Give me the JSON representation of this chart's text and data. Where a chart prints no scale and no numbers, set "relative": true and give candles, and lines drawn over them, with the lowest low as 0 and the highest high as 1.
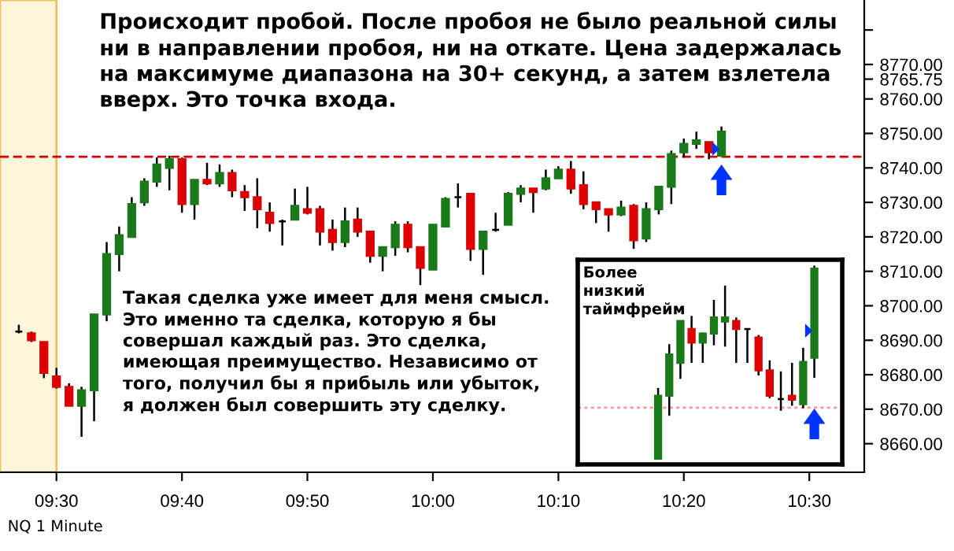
{
  "chart_data": [
    {
      "type": "candlestick",
      "title": "Происходит пробой. После пробоя не было реальной силы\nни в направлении пробоя, ни на откате. Цена задержалась\nна максимуме диапазона на 30+ секунд, а затем взлетела\nвверх. Это точка входа.",
      "annotations": [
        "Такая сделка уже имеет для меня смысл.\nЭто именно та сделка, которую я бы\nсовершал каждый раз. Это сделка,\nимеющая преимущество. Независимо от\nтого, получил бы я прибыль или убыток,\nя должен был совершить эту сделку.",
        "NQ 1 Minute"
      ],
      "x": [
        9.45,
        9.4667,
        9.4833,
        9.5,
        9.5167,
        9.5333,
        9.55,
        9.5667,
        9.5833,
        9.6,
        9.6167,
        9.6333,
        9.65,
        9.6667,
        9.6833,
        9.7,
        9.7167,
        9.7333,
        9.75,
        9.7667,
        9.7833,
        9.8,
        9.8167,
        9.8333,
        9.85,
        9.8667,
        9.8833,
        9.9,
        9.9167,
        9.9333,
        9.95,
        9.9667,
        9.9833,
        10,
        10.0167,
        10.0333,
        10.05,
        10.0667,
        10.0833,
        10.1,
        10.1167,
        10.1333,
        10.15,
        10.1667,
        10.1833,
        10.2,
        10.2167,
        10.2333,
        10.25,
        10.2667,
        10.2833,
        10.3,
        10.3167,
        10.3333,
        10.35,
        10.3667,
        10.3833
      ],
      "ohlc": [
        [
          8692.5,
          8694.5,
          8692,
          8692.5
        ],
        [
          8692,
          8692.5,
          8689.5,
          8690
        ],
        [
          8689.5,
          8689.5,
          8679,
          8680.5
        ],
        [
          8679.5,
          8682,
          8676,
          8676.5
        ],
        [
          8676.5,
          8677.5,
          8671,
          8671
        ],
        [
          8671,
          8676.5,
          8662,
          8675.5
        ],
        [
          8675.5,
          8697.5,
          8666.5,
          8697.5
        ],
        [
          8697.5,
          8718.5,
          8695.5,
          8715
        ],
        [
          8715,
          8723,
          8710,
          8720.5
        ],
        [
          8720,
          8731.5,
          8720,
          8729.5
        ],
        [
          8730,
          8737,
          8729,
          8736
        ],
        [
          8736,
          8743,
          8734.5,
          8741
        ],
        [
          8740,
          8743.5,
          8733.5,
          8742.5
        ],
        [
          8742.5,
          8743,
          8727,
          8729.5
        ],
        [
          8729.5,
          8736.5,
          8725,
          8736.5
        ],
        [
          8736.5,
          8741.5,
          8735,
          8735.5
        ],
        [
          8735.5,
          8741,
          8734.5,
          8738.5
        ],
        [
          8738.5,
          8739.5,
          8731.5,
          8733.5
        ],
        [
          8733,
          8735,
          8727.5,
          8731.5
        ],
        [
          8731.5,
          8737,
          8722.5,
          8728
        ],
        [
          8727,
          8730,
          8721.5,
          8724
        ],
        [
          8724.5,
          8725,
          8717.5,
          8724.5
        ],
        [
          8725,
          8734,
          8725,
          8729
        ],
        [
          8728,
          8734.5,
          8726.5,
          8727
        ],
        [
          8728,
          8729,
          8717.5,
          8721.5
        ],
        [
          8722,
          8725,
          8716,
          8718.5
        ],
        [
          8718.5,
          8728.5,
          8717,
          8724.5
        ],
        [
          8725,
          8728.5,
          8720,
          8721.5
        ],
        [
          8721.5,
          8721.5,
          8712.5,
          8714.5
        ],
        [
          8714.5,
          8717,
          8710,
          8717
        ],
        [
          8717,
          8724.5,
          8714.5,
          8723.5
        ],
        [
          8723.5,
          8724.5,
          8715.5,
          8717
        ],
        [
          8717,
          8717,
          8706,
          8711
        ],
        [
          8710.5,
          8723.5,
          8710.5,
          8723.5
        ],
        [
          8723,
          8731.5,
          8723,
          8731
        ],
        [
          8731.5,
          8735.5,
          8728.5,
          8731.5
        ],
        [
          8732.5,
          8732.5,
          8713,
          8716.5
        ],
        [
          8716.5,
          8721.5,
          8709,
          8721.5
        ],
        [
          8722,
          8727,
          8721.5,
          8722
        ],
        [
          8723.5,
          8733,
          8723.5,
          8732.5
        ],
        [
          8732.5,
          8735,
          8730,
          8734
        ],
        [
          8734,
          8734,
          8727,
          8733
        ],
        [
          8734,
          8739.5,
          8733.5,
          8737
        ],
        [
          8737,
          8740.5,
          8737,
          8739.5
        ],
        [
          8739.5,
          8742,
          8732.5,
          8734
        ],
        [
          8735,
          8739,
          8728,
          8729.5
        ],
        [
          8730,
          8730,
          8724,
          8728
        ],
        [
          8728,
          8728,
          8721.5,
          8726.5
        ],
        [
          8726.5,
          8730.5,
          8726,
          8728.5
        ],
        [
          8729,
          8729.5,
          8716.5,
          8719
        ],
        [
          8719.5,
          8730,
          8718.5,
          8728
        ],
        [
          8728,
          8734.5,
          8726.5,
          8734.5
        ],
        [
          8734.5,
          8745,
          8729.5,
          8744
        ],
        [
          8744.5,
          8748.5,
          8743,
          8747
        ],
        [
          8747,
          8750.5,
          8745.5,
          8748
        ],
        [
          8747.5,
          8747.5,
          8742.5,
          8744.5
        ],
        [
          8743.5,
          8752,
          8743.5,
          8750.5
        ]
      ],
      "colors": [
        "#000000",
        "#dd0000",
        "#dd0000",
        "#dd0000",
        "#dd0000",
        "#1a7a1a",
        "#1a7a1a",
        "#1a7a1a",
        "#1a7a1a",
        "#1a7a1a",
        "#1a7a1a",
        "#1a7a1a",
        "#1a7a1a",
        "#dd0000",
        "#1a7a1a",
        "#dd0000",
        "#1a7a1a",
        "#dd0000",
        "#dd0000",
        "#dd0000",
        "#dd0000",
        "#000000",
        "#1a7a1a",
        "#dd0000",
        "#dd0000",
        "#dd0000",
        "#1a7a1a",
        "#dd0000",
        "#dd0000",
        "#1a7a1a",
        "#1a7a1a",
        "#dd0000",
        "#dd0000",
        "#1a7a1a",
        "#1a7a1a",
        "#000000",
        "#dd0000",
        "#1a7a1a",
        "#000000",
        "#1a7a1a",
        "#1a7a1a",
        "#dd0000",
        "#1a7a1a",
        "#1a7a1a",
        "#dd0000",
        "#dd0000",
        "#dd0000",
        "#dd0000",
        "#1a7a1a",
        "#dd0000",
        "#1a7a1a",
        "#1a7a1a",
        "#1a7a1a",
        "#1a7a1a",
        "#1a7a1a",
        "#dd0000",
        "#1a7a1a"
      ],
      "xlim": [
        9.425,
        10.573
      ],
      "xticks": [
        {
          "value": 9.5,
          "label": "09:30"
        },
        {
          "value": 9.6667,
          "label": "09:40"
        },
        {
          "value": 9.8333,
          "label": "09:50"
        },
        {
          "value": 10,
          "label": "10:00"
        },
        {
          "value": 10.1667,
          "label": "10:10"
        },
        {
          "value": 10.3333,
          "label": "10:20"
        },
        {
          "value": 10.5,
          "label": "10:30"
        }
      ],
      "ylim": [
        8651.7,
        8788.7
      ],
      "yticks": [
        {
          "value": 8660,
          "label": "8660.00"
        },
        {
          "value": 8670,
          "label": "8670.00"
        },
        {
          "value": 8680,
          "label": "8680.00"
        },
        {
          "value": 8690,
          "label": "8690.00"
        },
        {
          "value": 8700,
          "label": "8700.00"
        },
        {
          "value": 8710,
          "label": "8710.00"
        },
        {
          "value": 8720,
          "label": "8720.00"
        },
        {
          "value": 8730,
          "label": "8730.00"
        },
        {
          "value": 8740,
          "label": "8740.00"
        },
        {
          "value": 8750,
          "label": "8750.00"
        },
        {
          "value": 8760,
          "label": "8760.00"
        },
        {
          "value": 8765.75,
          "label": "8765.75"
        },
        {
          "value": 8770,
          "label": "8770.00"
        },
        {
          "value": 8780,
          "label": null
        }
      ],
      "ref_lines": [
        {
          "axis": "y",
          "value": 8743.25,
          "color": "#cc0000",
          "line_style": "dashed"
        }
      ],
      "bands": [
        {
          "axis": "x",
          "from": 9.425,
          "to": 9.5,
          "color": "#fdf5dc"
        }
      ]
    },
    {
      "type": "candlestick",
      "title": "Более\nнизкий\nтаймфрейм",
      "categories": [
        null,
        null,
        null,
        null,
        null,
        null,
        null,
        null,
        null,
        null,
        null,
        null,
        null,
        null,
        null
      ],
      "relative": true,
      "ohlc": [
        [
          0,
          0.366,
          0,
          0.326
        ],
        [
          0.326,
          0.593,
          0.222,
          0.54
        ],
        [
          0.496,
          0.713,
          0.413,
          0.713
        ],
        [
          0.671,
          0.739,
          0.496,
          0.601
        ],
        [
          0.601,
          0.653,
          0.496,
          0.648
        ],
        [
          0.648,
          0.822,
          0.587,
          0.731
        ],
        [
          0.71,
          0.896,
          0.58,
          0.731
        ],
        [
          0.713,
          0.731,
          0.496,
          0.671
        ],
        [
          0.671,
          0.671,
          0.496,
          0.671
        ],
        [
          0.627,
          0.64,
          0.431,
          0.457
        ],
        [
          0.457,
          0.509,
          0.313,
          0.326
        ],
        [
          0.308,
          0.452,
          0.248,
          0.308
        ],
        [
          0.326,
          0.496,
          0.274,
          0.305
        ],
        [
          0.282,
          0.574,
          0.261,
          0.501
        ],
        [
          0.522,
          1,
          0.418,
          0.984
        ]
      ],
      "colors": [
        "#1a7a1a",
        "#1a7a1a",
        "#1a7a1a",
        "#dd0000",
        "#1a7a1a",
        "#1a7a1a",
        "#1a7a1a",
        "#dd0000",
        "#000000",
        "#dd0000",
        "#dd0000",
        "#000000",
        "#dd0000",
        "#1a7a1a",
        "#1a7a1a"
      ],
      "ref_lines": [
        {
          "axis": "y",
          "value": 0.264,
          "color": "#ff9999",
          "line_style": "dotted"
        }
      ]
    }
  ]
}
